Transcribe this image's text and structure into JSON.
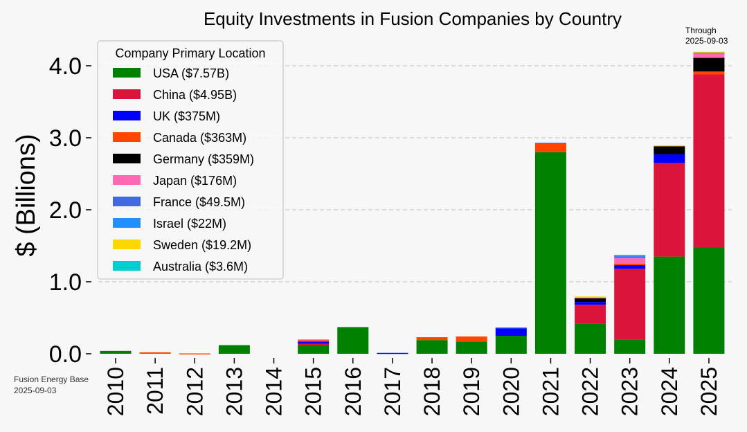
{
  "chart_data": {
    "type": "bar",
    "stacked": true,
    "title": "Equity Investments in Fusion Companies by Country",
    "xlabel": "",
    "ylabel": "$ (Billions)",
    "ylim": [
      0,
      4.3
    ],
    "yticks": [
      "0.0",
      "1.0",
      "2.0",
      "3.0",
      "4.0"
    ],
    "ytick_values": [
      0,
      1,
      2,
      3,
      4
    ],
    "grid": true,
    "legend_title": "Company Primary Location",
    "legend_position": "top-left",
    "annotation": "Through\n2025-09-03",
    "annotation_lines": [
      "Through",
      "2025-09-03"
    ],
    "categories": [
      "2010",
      "2011",
      "2012",
      "2013",
      "2014",
      "2015",
      "2016",
      "2017",
      "2018",
      "2019",
      "2020",
      "2021",
      "2022",
      "2023",
      "2024",
      "2025"
    ],
    "series": [
      {
        "name": "USA",
        "legend": "USA ($7.57B)",
        "color": "#008000",
        "values": [
          0.04,
          0.0,
          0.0,
          0.12,
          0.0,
          0.12,
          0.37,
          0.0,
          0.19,
          0.17,
          0.25,
          2.8,
          0.42,
          0.2,
          1.35,
          1.48
        ]
      },
      {
        "name": "China",
        "legend": "China ($4.95B)",
        "color": "#dc143c",
        "values": [
          0,
          0,
          0,
          0,
          0,
          0.02,
          0,
          0,
          0,
          0,
          0,
          0,
          0.26,
          0.98,
          1.3,
          2.4
        ]
      },
      {
        "name": "UK",
        "legend": "UK ($375M)",
        "color": "#0000ff",
        "values": [
          0,
          0,
          0,
          0,
          0,
          0.03,
          0,
          0.012,
          0,
          0,
          0.11,
          0,
          0.04,
          0.05,
          0.12,
          0
        ]
      },
      {
        "name": "Canada",
        "legend": "Canada ($363M)",
        "color": "#ff4500",
        "values": [
          0,
          0.02,
          0.005,
          0,
          0,
          0.02,
          0,
          0,
          0.04,
          0.07,
          0,
          0.12,
          0,
          0.02,
          0,
          0.04
        ]
      },
      {
        "name": "Germany",
        "legend": "Germany ($359M)",
        "color": "#000000",
        "values": [
          0,
          0,
          0,
          0,
          0,
          0,
          0,
          0,
          0,
          0,
          0,
          0,
          0.05,
          0,
          0.12,
          0.19
        ]
      },
      {
        "name": "Japan",
        "legend": "Japan ($176M)",
        "color": "#ff69b4",
        "values": [
          0,
          0,
          0,
          0,
          0,
          0.01,
          0,
          0,
          0,
          0,
          0,
          0,
          0.02,
          0.08,
          0,
          0.06
        ]
      },
      {
        "name": "France",
        "legend": "France ($49.5M)",
        "color": "#4169e1",
        "values": [
          0,
          0,
          0,
          0,
          0,
          0,
          0,
          0,
          0,
          0,
          0.005,
          0.01,
          0,
          0.02,
          0,
          0.015
        ]
      },
      {
        "name": "Israel",
        "legend": "Israel ($22M)",
        "color": "#1e90ff",
        "values": [
          0,
          0,
          0,
          0,
          0,
          0,
          0,
          0,
          0,
          0,
          0,
          0,
          0,
          0.02,
          0,
          0
        ]
      },
      {
        "name": "Sweden",
        "legend": "Sweden ($19.2M)",
        "color": "#ffd700",
        "values": [
          0,
          0,
          0,
          0,
          0,
          0,
          0,
          0,
          0,
          0,
          0,
          0,
          0.005,
          0,
          0.005,
          0.01
        ]
      },
      {
        "name": "Australia",
        "legend": "Australia ($3.6M)",
        "color": "#00ced1",
        "values": [
          0,
          0,
          0,
          0,
          0,
          0,
          0,
          0,
          0,
          0,
          0,
          0,
          0,
          0.004,
          0,
          0
        ]
      }
    ]
  },
  "credit": {
    "line1": "Fusion Energy Base",
    "line2": "2025-09-03"
  }
}
